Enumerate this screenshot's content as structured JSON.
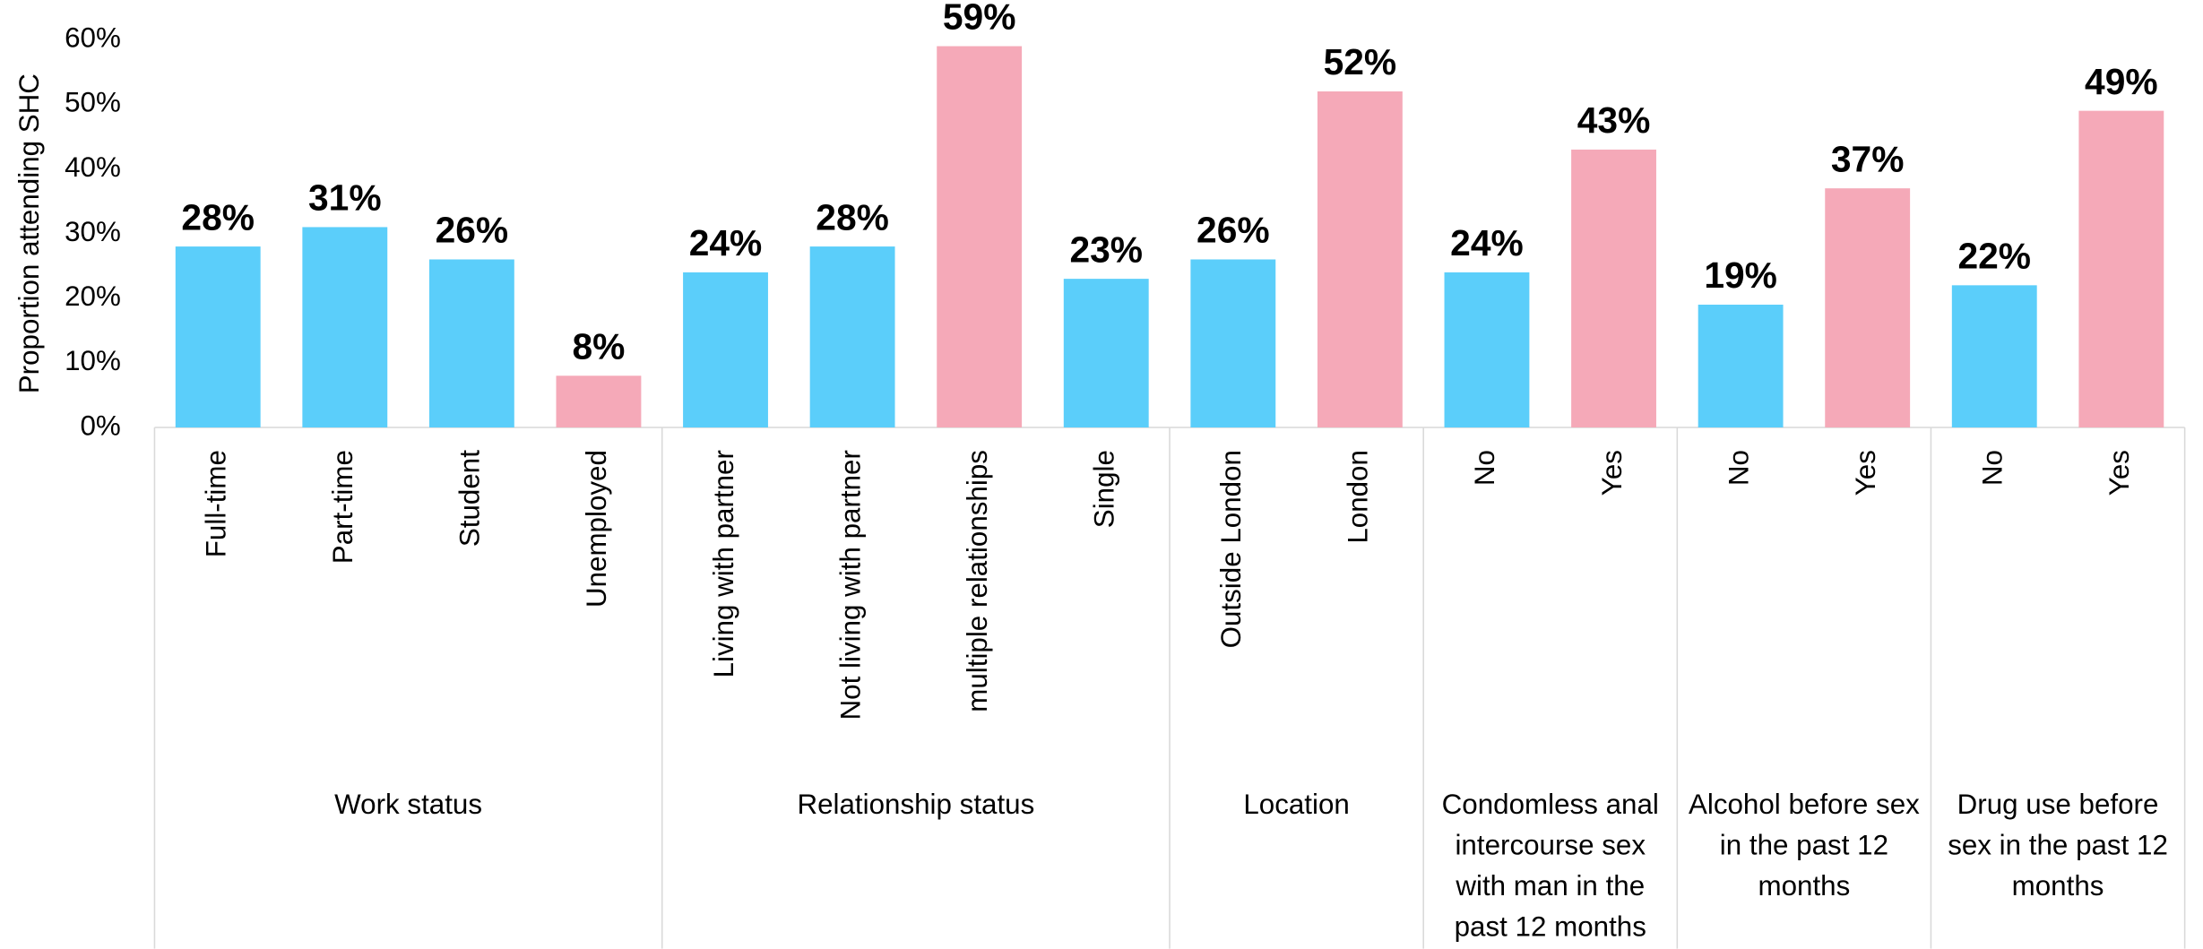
{
  "chart_data": {
    "type": "bar",
    "y_label": "Proportion attending SHC",
    "ylim": [
      0,
      60
    ],
    "yticks": [
      {
        "value": 0,
        "label": "0%"
      },
      {
        "value": 10,
        "label": "10%"
      },
      {
        "value": 20,
        "label": "20%"
      },
      {
        "value": 30,
        "label": "30%"
      },
      {
        "value": 40,
        "label": "40%"
      },
      {
        "value": 50,
        "label": "50%"
      },
      {
        "value": 60,
        "label": "60%"
      }
    ],
    "groups": [
      {
        "label": "Work status",
        "categories": [
          "Full-time",
          "Part-time",
          "Student",
          "Unemployed"
        ],
        "values": [
          28,
          31,
          26,
          8
        ],
        "value_labels": [
          "28%",
          "31%",
          "26%",
          "8%"
        ],
        "colors": [
          "#5bcefa",
          "#5bcefa",
          "#5bcefa",
          "#f5a9b8"
        ]
      },
      {
        "label": "Relationship status",
        "categories": [
          "Living with partner",
          "Not living with partner",
          "multiple relationships",
          "Single"
        ],
        "values": [
          24,
          28,
          59,
          23
        ],
        "value_labels": [
          "24%",
          "28%",
          "59%",
          "23%"
        ],
        "colors": [
          "#5bcefa",
          "#5bcefa",
          "#f5a9b8",
          "#5bcefa"
        ]
      },
      {
        "label": "Location",
        "categories": [
          "Outside London",
          "London"
        ],
        "values": [
          26,
          52
        ],
        "value_labels": [
          "26%",
          "52%"
        ],
        "colors": [
          "#5bcefa",
          "#f5a9b8"
        ]
      },
      {
        "label": "Condomless anal intercourse sex with man in the past 12 months",
        "categories": [
          "No",
          "Yes"
        ],
        "values": [
          24,
          43
        ],
        "value_labels": [
          "24%",
          "43%"
        ],
        "colors": [
          "#5bcefa",
          "#f5a9b8"
        ]
      },
      {
        "label": "Alcohol before sex in the past 12 months",
        "categories": [
          "No",
          "Yes"
        ],
        "values": [
          19,
          37
        ],
        "value_labels": [
          "19%",
          "37%"
        ],
        "colors": [
          "#5bcefa",
          "#f5a9b8"
        ]
      },
      {
        "label": "Drug use before sex in the past 12 months",
        "categories": [
          "No",
          "Yes"
        ],
        "values": [
          22,
          49
        ],
        "value_labels": [
          "22%",
          "49%"
        ],
        "colors": [
          "#5bcefa",
          "#f5a9b8"
        ]
      }
    ]
  }
}
